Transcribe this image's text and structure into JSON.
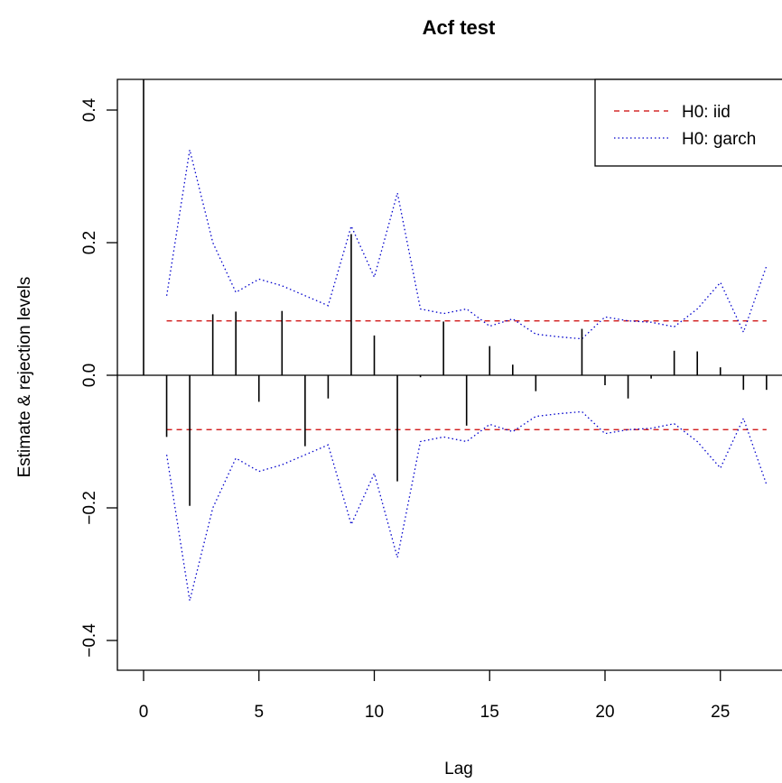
{
  "chart_data": {
    "type": "bar",
    "title": "Acf test",
    "xlabel": "Lag",
    "ylabel": "Estimate & rejection levels",
    "xlim": [
      -1.1,
      27.1
    ],
    "ylim": [
      -0.44,
      0.44
    ],
    "x_ticks": [
      0,
      5,
      10,
      15,
      20,
      25
    ],
    "x_tick_labels": [
      "0",
      "5",
      "10",
      "15",
      "20",
      "25"
    ],
    "y_ticks": [
      -0.4,
      -0.2,
      0.0,
      0.2,
      0.4
    ],
    "y_tick_labels": [
      "−0.4",
      "−0.2",
      "0.0",
      "0.2",
      "0.4"
    ],
    "legend": {
      "position": "top-right",
      "entries": [
        {
          "label": "H0: iid",
          "color": "#cc0000",
          "style": "dashed"
        },
        {
          "label": "H0: garch",
          "color": "#0000cc",
          "style": "dotted"
        }
      ]
    },
    "acf": {
      "lags": [
        0,
        1,
        2,
        3,
        4,
        5,
        6,
        7,
        8,
        9,
        10,
        11,
        12,
        13,
        14,
        15,
        16,
        17,
        18,
        19,
        20,
        21,
        22,
        23,
        24,
        25,
        26,
        27
      ],
      "values": [
        1.0,
        -0.093,
        -0.197,
        0.092,
        0.096,
        -0.04,
        0.097,
        -0.107,
        -0.035,
        0.213,
        0.06,
        -0.16,
        -0.003,
        0.081,
        -0.076,
        0.044,
        0.016,
        -0.024,
        0.0,
        0.07,
        -0.015,
        -0.035,
        -0.005,
        0.037,
        0.036,
        0.012,
        -0.022,
        -0.022
      ]
    },
    "iid_level": 0.082,
    "garch_band": {
      "lags": [
        1,
        2,
        3,
        4,
        5,
        6,
        7,
        8,
        9,
        10,
        11,
        12,
        13,
        14,
        15,
        16,
        17,
        18,
        19,
        20,
        21,
        22,
        23,
        24,
        25,
        26,
        27
      ],
      "upper": [
        0.12,
        0.34,
        0.2,
        0.125,
        0.145,
        0.135,
        0.12,
        0.105,
        0.225,
        0.148,
        0.275,
        0.1,
        0.093,
        0.1,
        0.074,
        0.085,
        0.062,
        0.058,
        0.055,
        0.088,
        0.082,
        0.08,
        0.073,
        0.1,
        0.14,
        0.065,
        0.165
      ]
    }
  }
}
